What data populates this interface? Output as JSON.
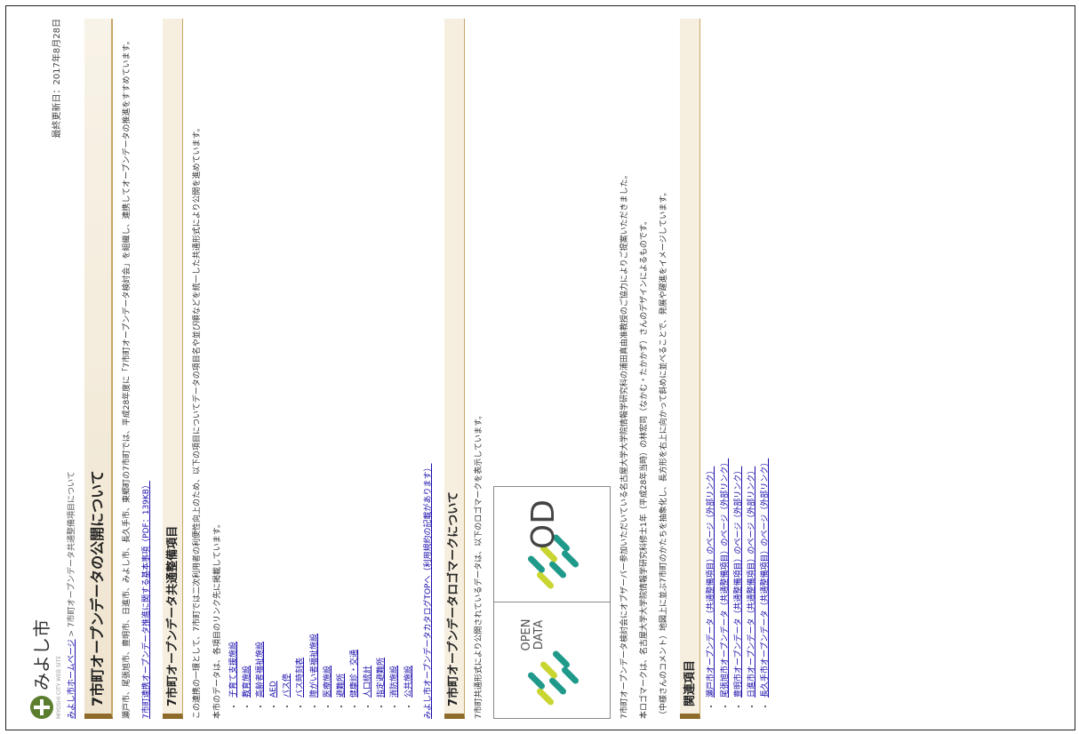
{
  "header": {
    "site_name": "みよし市",
    "site_sub": "MIYOSHI CITY WEB SITE",
    "updated": "最終更新日：2017年8月28日"
  },
  "breadcrumb": {
    "home": "みよし市ホームページ",
    "separator": " > ",
    "current": "7市町オープンデータ共通整備項目について"
  },
  "title": "7市町オープンデータの公開について",
  "intro": {
    "text": "瀬戸市、尾張旭市、豊明市、日進市、みよし市、長久手市、東郷町の7市町では、平成28年度に「7市町オープンデータ検討会」を組織し、連携してオープンデータの推進をすすめています。",
    "link": "7市町連携オープンデータ推進に関する基本事項（PDF：139KB）"
  },
  "section1": {
    "heading": "7市町オープンデータ共通整備項目",
    "text1": "この連携の一環として、7市町では二次利用者の利便性向上のため、以下の項目についてデータの項目名や並び順などを統一した共通形式により公開を進めています。",
    "text2": "本市のデータは、各項目のリンク先に掲載しています。",
    "items": [
      "子育て支援施設",
      "教育施設",
      "高齢者福祉施設",
      "AED",
      "バス停",
      "バス時刻表",
      "障がい者福祉施設",
      "医療施設",
      "避難所",
      "健康診・交通",
      "人口統計",
      "指定避難所",
      "消防施設",
      "公共施設"
    ],
    "footer_link": "みよし市オープンデータカタログTOPへ（利用規約の記載があります）"
  },
  "section2": {
    "heading": "7市町オープンデータロゴマークについて",
    "text1": "7市町共通形式により公開されているデータは、以下のロゴマークを表示しています。",
    "logo_left_line1": "OPEN",
    "logo_left_line2": "DATA",
    "logo_right": "OD",
    "text2": "7市町オープンデータ検討会にオブザーバー参加いただいている名古屋大学大学院情報学研究科の浦田真由准教授のご協力によりご提案いただきました。",
    "text3": "本ロゴマークは、名古屋大学大学院情報学研究科修士1年（平成28年当時）の林宏司（なかむ・たかかず）さんのデザインによるものです。",
    "text4": "（中様さんのコメント）地図上に並ぶ7市町のかたちを抽象化し、長方形を右上に向かって斜めに並べることで、発展や躍進をイメージしています。"
  },
  "section3": {
    "heading": "関連項目",
    "links": [
      "瀬戸市オープンデータ（共通整備項目）のページ（外部リンク）",
      "尾張旭市オープンデータ（共通整備項目）のページ（外部リンク）",
      "豊明市オープンデータ（共通整備項目）のページ（外部リンク）",
      "日進市オープンデータ（共通整備項目）のページ（外部リンク）",
      "長久手市オープンデータ（共通整備項目）のページ（外部リンク）"
    ]
  },
  "colors": {
    "accent": "#8e6b2b",
    "link": "#1a0dab",
    "logo_green": "#5b7d2e",
    "od_yellow": "#c9d531",
    "od_teal": "#1f9a8a"
  }
}
